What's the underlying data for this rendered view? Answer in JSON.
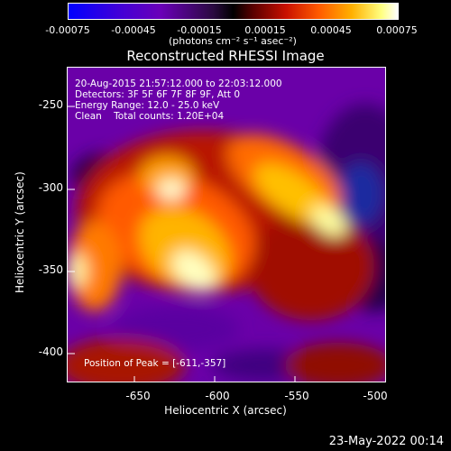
{
  "colorbar": {
    "ticks": [
      "-0.00075",
      "-0.00045",
      "-0.00015",
      "0.00015",
      "0.00045",
      "0.00075"
    ],
    "unit_label": "(photons cm⁻² s⁻¹ asec⁻²)"
  },
  "title": "Reconstructed RHESSI Image",
  "info": {
    "line1": "20-Aug-2015 21:57:12.000 to 22:03:12.000",
    "line2": "Detectors: 3F 5F 6F 7F 8F 9F, Att 0",
    "line3": "Energy Range: 12.0 - 25.0 keV",
    "line4": "Clean    Total counts: 1.20E+04",
    "peak": "Position of Peak = [-611,-357]"
  },
  "axes": {
    "x_label": "Heliocentric X (arcsec)",
    "y_label": "Heliocentric Y (arcsec)",
    "x_ticks": [
      "-650",
      "-600",
      "-550",
      "-500"
    ],
    "y_ticks": [
      "-250",
      "-300",
      "-350",
      "-400"
    ]
  },
  "footer": {
    "date": "23-May-2022 00:14"
  }
}
